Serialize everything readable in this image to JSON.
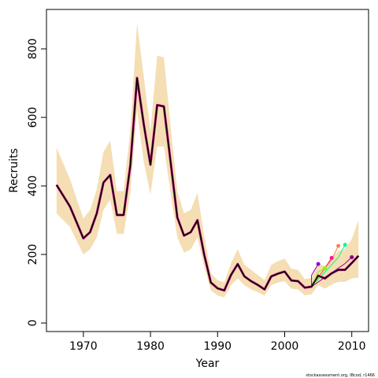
{
  "chart_data": {
    "type": "line",
    "xlabel": "Year",
    "ylabel": "Recruits",
    "xlim": [
      1964.5,
      2012.5
    ],
    "ylim": [
      -25,
      915
    ],
    "x_ticks": [
      1970,
      1980,
      1990,
      2000,
      2010
    ],
    "y_ticks": [
      0,
      200,
      400,
      600,
      800
    ],
    "grid": false,
    "legend": "none",
    "colors": {
      "band": "#f5deb3",
      "main_line": "#000000",
      "retro_line": "#c71585",
      "point_colors": [
        "#9400d3",
        "#7cfc00",
        "#ff1493",
        "#ff7f50",
        "#00ff7f",
        "#8b008b"
      ]
    },
    "x": [
      1966,
      1968,
      1970,
      1971,
      1972,
      1973,
      1974,
      1975,
      1976,
      1977,
      1978,
      1979,
      1980,
      1981,
      1982,
      1983,
      1984,
      1985,
      1986,
      1987,
      1988,
      1989,
      1990,
      1991,
      1992,
      1993,
      1994,
      1995,
      1996,
      1997,
      1998,
      1999,
      2000,
      2001,
      2002,
      2003,
      2004,
      2005,
      2006,
      2007,
      2008,
      2009,
      2010,
      2011
    ],
    "series": [
      {
        "values": [
          403,
          340,
          247,
          265,
          320,
          410,
          432,
          315,
          315,
          460,
          715,
          580,
          462,
          636,
          632,
          470,
          308,
          255,
          265,
          300,
          200,
          118,
          101,
          95,
          140,
          172,
          136,
          122,
          111,
          98,
          136,
          144,
          150,
          124,
          122,
          103,
          106,
          138,
          130,
          145,
          155,
          155,
          175,
          196
        ]
      }
    ],
    "band_lower": [
      320,
      280,
      200,
      215,
      250,
      330,
      360,
      260,
      260,
      380,
      620,
      470,
      375,
      515,
      515,
      380,
      250,
      205,
      215,
      250,
      165,
      95,
      80,
      75,
      110,
      130,
      110,
      98,
      90,
      80,
      110,
      118,
      122,
      100,
      98,
      80,
      84,
      110,
      100,
      112,
      120,
      120,
      130,
      132
    ],
    "band_upper": [
      512,
      420,
      305,
      330,
      390,
      500,
      532,
      385,
      385,
      565,
      875,
      720,
      560,
      780,
      775,
      575,
      385,
      320,
      330,
      380,
      255,
      145,
      125,
      118,
      175,
      215,
      170,
      155,
      140,
      125,
      170,
      180,
      188,
      158,
      155,
      128,
      132,
      175,
      165,
      190,
      210,
      215,
      245,
      300
    ],
    "retrospective_points": [
      {
        "x": 2005,
        "y": 172
      },
      {
        "x": 2006,
        "y": 160
      },
      {
        "x": 2007,
        "y": 190
      },
      {
        "x": 2008,
        "y": 225
      },
      {
        "x": 2009,
        "y": 228
      },
      {
        "x": 2010,
        "y": 192
      }
    ],
    "credit": "stockassessment.org, IBcod, r1466"
  }
}
